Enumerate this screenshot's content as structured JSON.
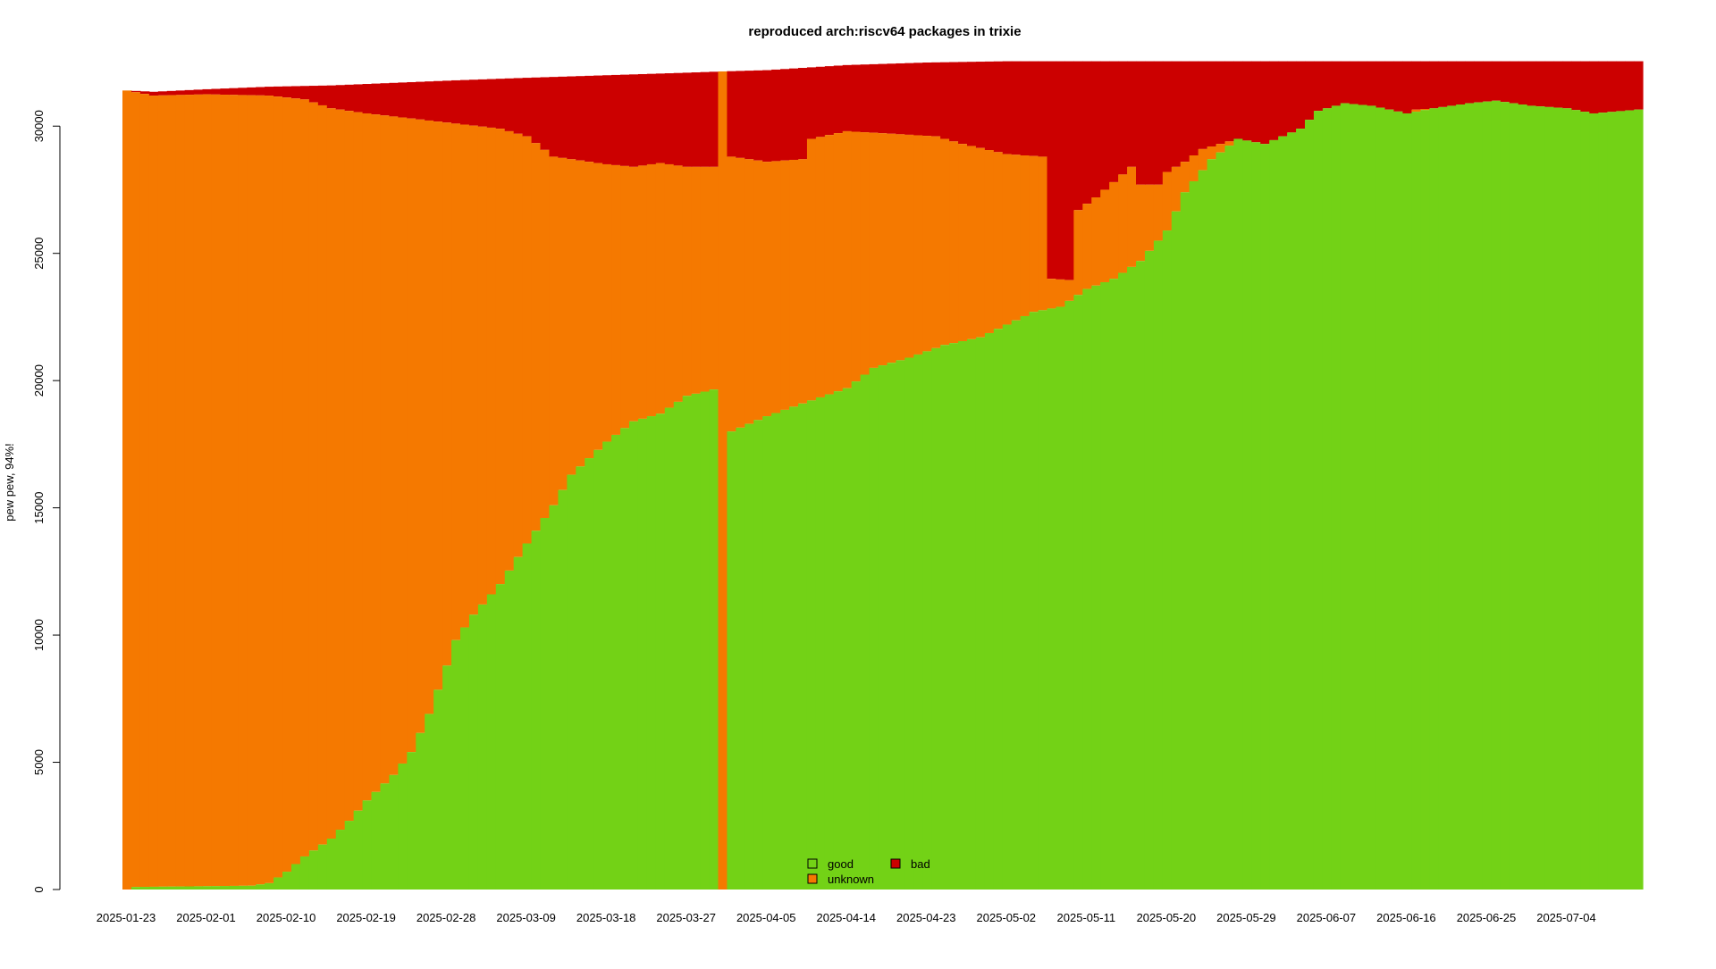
{
  "chart_data": {
    "type": "bar",
    "stacked": true,
    "title": "reproduced arch:riscv64 packages in trixie",
    "xlabel": "",
    "ylabel": "pew pew, 94%!",
    "ylim": [
      0,
      32500
    ],
    "yticks": [
      0,
      5000,
      10000,
      15000,
      20000,
      25000,
      30000
    ],
    "x_tick_labels": [
      "2025-01-23",
      "2025-02-01",
      "2025-02-10",
      "2025-02-19",
      "2025-02-28",
      "2025-03-09",
      "2025-03-18",
      "2025-03-27",
      "2025-04-05",
      "2025-04-14",
      "2025-04-23",
      "2025-05-02",
      "2025-05-11",
      "2025-05-20",
      "2025-05-29",
      "2025-06-07",
      "2025-06-16",
      "2025-06-25",
      "2025-07-04"
    ],
    "x_start": "2025-01-23",
    "x_end": "2025-07-12",
    "grid": false,
    "legend_position": "bottom-center",
    "series": [
      {
        "name": "good",
        "color": "#73d216",
        "keypoints": [
          [
            "2025-01-23",
            0
          ],
          [
            "2025-01-24",
            100
          ],
          [
            "2025-02-06",
            150
          ],
          [
            "2025-02-08",
            250
          ],
          [
            "2025-02-10",
            700
          ],
          [
            "2025-02-12",
            1300
          ],
          [
            "2025-02-15",
            2000
          ],
          [
            "2025-02-17",
            2700
          ],
          [
            "2025-02-19",
            3500
          ],
          [
            "2025-02-22",
            4500
          ],
          [
            "2025-02-24",
            5400
          ],
          [
            "2025-02-26",
            6900
          ],
          [
            "2025-02-28",
            8800
          ],
          [
            "2025-03-01",
            9800
          ],
          [
            "2025-03-03",
            10800
          ],
          [
            "2025-03-06",
            12000
          ],
          [
            "2025-03-09",
            13600
          ],
          [
            "2025-03-12",
            15100
          ],
          [
            "2025-03-14",
            16300
          ],
          [
            "2025-03-18",
            17600
          ],
          [
            "2025-03-21",
            18400
          ],
          [
            "2025-03-24",
            18700
          ],
          [
            "2025-03-27",
            19400
          ],
          [
            "2025-03-30",
            19650
          ],
          [
            "2025-03-31",
            0
          ],
          [
            "2025-04-01",
            18000
          ],
          [
            "2025-04-05",
            18600
          ],
          [
            "2025-04-09",
            19100
          ],
          [
            "2025-04-14",
            19700
          ],
          [
            "2025-04-17",
            20500
          ],
          [
            "2025-04-21",
            20900
          ],
          [
            "2025-04-25",
            21400
          ],
          [
            "2025-04-29",
            21700
          ],
          [
            "2025-05-02",
            22200
          ],
          [
            "2025-05-05",
            22700
          ],
          [
            "2025-05-08",
            22900
          ],
          [
            "2025-05-11",
            23600
          ],
          [
            "2025-05-14",
            24000
          ],
          [
            "2025-05-17",
            24700
          ],
          [
            "2025-05-20",
            25900
          ],
          [
            "2025-05-22",
            27400
          ],
          [
            "2025-05-25",
            28700
          ],
          [
            "2025-05-28",
            29500
          ],
          [
            "2025-05-31",
            29300
          ],
          [
            "2025-06-04",
            29900
          ],
          [
            "2025-06-06",
            30600
          ],
          [
            "2025-06-09",
            30900
          ],
          [
            "2025-06-12",
            30800
          ],
          [
            "2025-06-16",
            30500
          ],
          [
            "2025-06-19",
            30700
          ],
          [
            "2025-06-23",
            30900
          ],
          [
            "2025-06-26",
            31000
          ],
          [
            "2025-06-30",
            30800
          ],
          [
            "2025-07-04",
            30700
          ],
          [
            "2025-07-07",
            30500
          ],
          [
            "2025-07-12",
            30650
          ]
        ]
      },
      {
        "name": "unknown",
        "color": "#f57900",
        "keypoints_top": [
          [
            "2025-01-23",
            31400
          ],
          [
            "2025-01-26",
            31200
          ],
          [
            "2025-02-01",
            31250
          ],
          [
            "2025-02-08",
            31200
          ],
          [
            "2025-02-12",
            31050
          ],
          [
            "2025-02-15",
            30700
          ],
          [
            "2025-02-19",
            30500
          ],
          [
            "2025-02-24",
            30300
          ],
          [
            "2025-03-01",
            30100
          ],
          [
            "2025-03-06",
            29900
          ],
          [
            "2025-03-09",
            29600
          ],
          [
            "2025-03-12",
            28800
          ],
          [
            "2025-03-18",
            28500
          ],
          [
            "2025-03-21",
            28400
          ],
          [
            "2025-03-24",
            28550
          ],
          [
            "2025-03-27",
            28400
          ],
          [
            "2025-03-30",
            28400
          ],
          [
            "2025-03-31",
            32150
          ],
          [
            "2025-04-01",
            28800
          ],
          [
            "2025-04-05",
            28600
          ],
          [
            "2025-04-09",
            28700
          ],
          [
            "2025-04-10",
            29500
          ],
          [
            "2025-04-14",
            29800
          ],
          [
            "2025-04-19",
            29700
          ],
          [
            "2025-04-24",
            29600
          ],
          [
            "2025-04-27",
            29300
          ],
          [
            "2025-05-02",
            28900
          ],
          [
            "2025-05-06",
            28800
          ],
          [
            "2025-05-07",
            24000
          ],
          [
            "2025-05-09",
            23950
          ],
          [
            "2025-05-10",
            26700
          ],
          [
            "2025-05-12",
            27200
          ],
          [
            "2025-05-14",
            27800
          ],
          [
            "2025-05-16",
            28400
          ],
          [
            "2025-05-17",
            27700
          ],
          [
            "2025-05-19",
            27700
          ],
          [
            "2025-05-20",
            28200
          ],
          [
            "2025-05-22",
            28600
          ],
          [
            "2025-05-24",
            29100
          ],
          [
            "2025-05-28",
            29500
          ],
          [
            "2025-05-31",
            29300
          ],
          [
            "2025-06-04",
            29900
          ],
          [
            "2025-06-06",
            30600
          ],
          [
            "2025-06-09",
            30900
          ],
          [
            "2025-06-12",
            30800
          ],
          [
            "2025-06-16",
            30500
          ],
          [
            "2025-06-17",
            30650
          ],
          [
            "2025-06-19",
            30700
          ],
          [
            "2025-06-23",
            30900
          ],
          [
            "2025-06-26",
            31000
          ],
          [
            "2025-06-30",
            30800
          ],
          [
            "2025-07-04",
            30700
          ],
          [
            "2025-07-07",
            30500
          ],
          [
            "2025-07-12",
            30650
          ]
        ]
      },
      {
        "name": "bad",
        "color": "#cc0000",
        "keypoints_top": [
          [
            "2025-01-23",
            31400
          ],
          [
            "2025-01-26",
            31350
          ],
          [
            "2025-02-01",
            31450
          ],
          [
            "2025-02-08",
            31550
          ],
          [
            "2025-02-15",
            31600
          ],
          [
            "2025-02-22",
            31700
          ],
          [
            "2025-03-01",
            31800
          ],
          [
            "2025-03-09",
            31900
          ],
          [
            "2025-03-18",
            32000
          ],
          [
            "2025-03-27",
            32100
          ],
          [
            "2025-03-31",
            32150
          ],
          [
            "2025-04-05",
            32200
          ],
          [
            "2025-04-14",
            32400
          ],
          [
            "2025-04-23",
            32500
          ],
          [
            "2025-05-02",
            32550
          ],
          [
            "2025-05-11",
            32550
          ],
          [
            "2025-05-20",
            32550
          ],
          [
            "2025-05-29",
            32550
          ],
          [
            "2025-06-07",
            32550
          ],
          [
            "2025-07-12",
            32550
          ]
        ]
      }
    ]
  }
}
